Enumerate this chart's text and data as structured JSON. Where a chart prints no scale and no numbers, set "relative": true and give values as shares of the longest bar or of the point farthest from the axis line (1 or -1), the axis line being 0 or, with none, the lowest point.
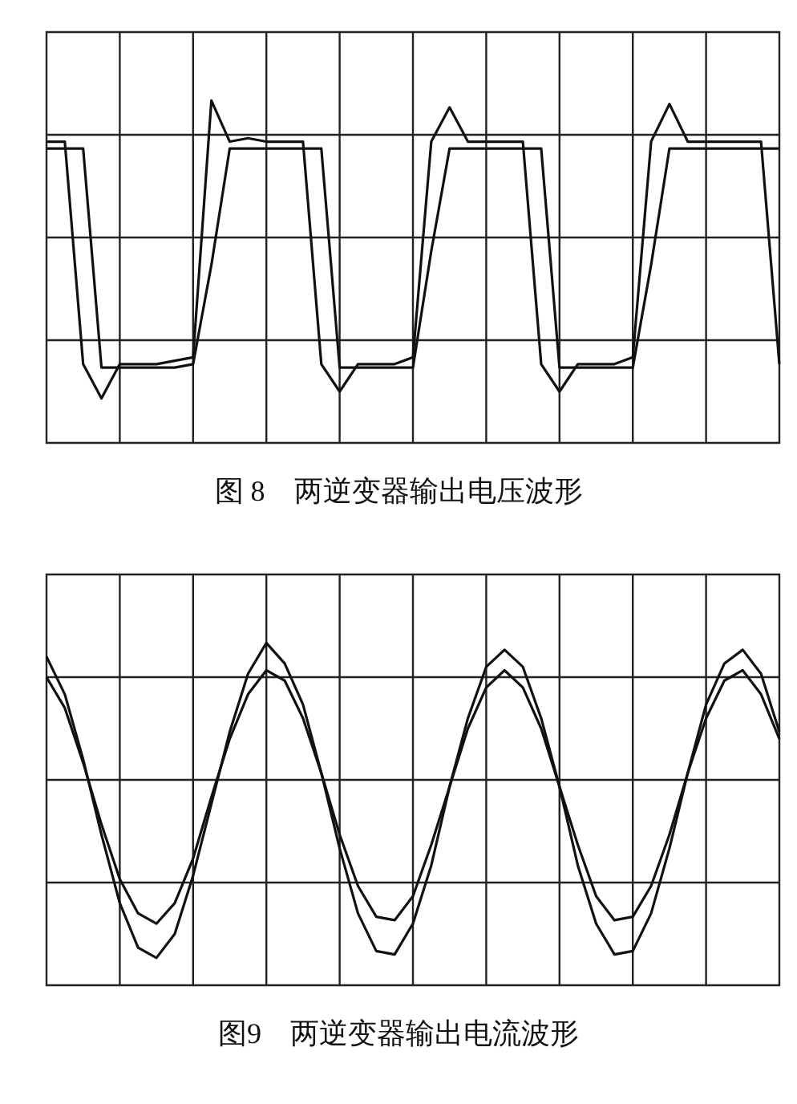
{
  "chart_data": [
    {
      "type": "line",
      "title": "图 8　两逆变器输出电压波形",
      "relative": true,
      "grid": true,
      "categories": [
        null,
        null,
        null,
        null,
        null,
        null,
        null,
        null,
        null,
        null,
        null,
        null,
        null,
        null,
        null,
        null,
        null,
        null,
        null,
        null,
        null,
        null,
        null,
        null,
        null,
        null,
        null,
        null,
        null,
        null,
        null,
        null,
        null,
        null,
        null,
        null,
        null,
        null,
        null,
        null,
        null
      ],
      "series": [
        {
          "color": "#111111",
          "values": [
            0.88,
            0.88,
            0.23,
            0.13,
            0.23,
            0.23,
            0.23,
            0.24,
            0.25,
            1,
            0.88,
            0.89,
            0.88,
            0.88,
            0.88,
            0.23,
            0.15,
            0.23,
            0.23,
            0.23,
            0.25,
            0.88,
            0.98,
            0.88,
            0.88,
            0.88,
            0.88,
            0.23,
            0.15,
            0.23,
            0.23,
            0.23,
            0.25,
            0.88,
            0.99,
            0.88,
            0.88,
            0.88,
            0.88,
            0.88,
            0.23
          ]
        },
        {
          "color": "#111111",
          "values": [
            0.86,
            0.86,
            0.86,
            0.22,
            0.22,
            0.22,
            0.22,
            0.22,
            0.23,
            0.52,
            0.86,
            0.86,
            0.86,
            0.86,
            0.86,
            0.86,
            0.22,
            0.22,
            0.22,
            0.22,
            0.22,
            0.56,
            0.86,
            0.86,
            0.86,
            0.86,
            0.86,
            0.86,
            0.22,
            0.22,
            0.22,
            0.22,
            0.22,
            0.52,
            0.86,
            0.86,
            0.86,
            0.86,
            0.86,
            0.86,
            0.86
          ]
        }
      ]
    },
    {
      "type": "line",
      "title": "图9　两逆变器输出电流波形",
      "relative": true,
      "grid": true,
      "categories": [
        null,
        null,
        null,
        null,
        null,
        null,
        null,
        null,
        null,
        null,
        null,
        null,
        null,
        null,
        null,
        null,
        null,
        null,
        null,
        null,
        null,
        null,
        null,
        null,
        null,
        null,
        null,
        null,
        null,
        null,
        null,
        null,
        null,
        null,
        null,
        null,
        null,
        null,
        null,
        null,
        null
      ],
      "series": [
        {
          "color": "#111111",
          "values": [
            0.96,
            0.85,
            0.66,
            0.44,
            0.24,
            0.11,
            0.08,
            0.15,
            0.32,
            0.53,
            0.74,
            0.91,
            1,
            0.94,
            0.82,
            0.62,
            0.4,
            0.21,
            0.1,
            0.09,
            0.18,
            0.35,
            0.58,
            0.78,
            0.93,
            0.98,
            0.93,
            0.78,
            0.58,
            0.35,
            0.18,
            0.09,
            0.1,
            0.21,
            0.4,
            0.62,
            0.82,
            0.94,
            0.98,
            0.91,
            0.74
          ]
        },
        {
          "color": "#111111",
          "values": [
            0.9,
            0.81,
            0.65,
            0.47,
            0.31,
            0.21,
            0.18,
            0.24,
            0.37,
            0.55,
            0.72,
            0.85,
            0.92,
            0.89,
            0.78,
            0.62,
            0.44,
            0.29,
            0.2,
            0.19,
            0.26,
            0.41,
            0.58,
            0.75,
            0.87,
            0.92,
            0.87,
            0.75,
            0.58,
            0.41,
            0.26,
            0.19,
            0.2,
            0.29,
            0.44,
            0.62,
            0.78,
            0.89,
            0.92,
            0.85,
            0.72
          ]
        }
      ]
    }
  ]
}
